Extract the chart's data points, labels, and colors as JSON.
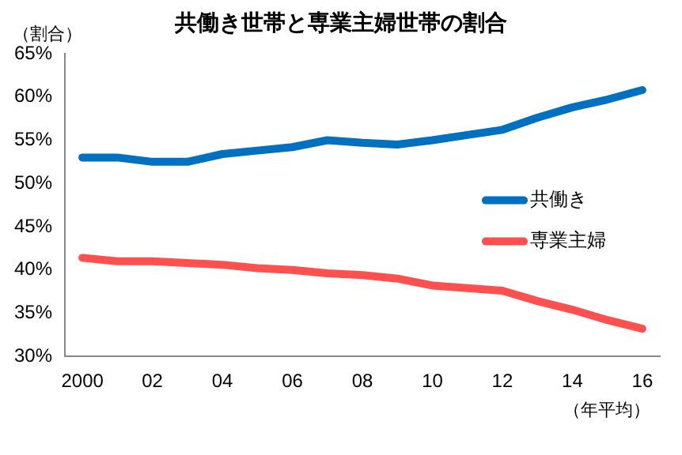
{
  "chart_data": {
    "type": "line",
    "title": "共働き世帯と専業主婦世帯の割合",
    "ylabel": "（割合）",
    "xlabel": "（年平均）",
    "categories": [
      "2000",
      null,
      "02",
      null,
      "04",
      null,
      "06",
      null,
      "08",
      null,
      "10",
      null,
      "12",
      null,
      "14",
      null,
      "16"
    ],
    "series": [
      {
        "name": "共働き",
        "color": "#0070c0",
        "values": [
          53,
          53,
          52.5,
          52.5,
          53.4,
          53.8,
          54.2,
          55,
          54.7,
          54.5,
          55,
          55.6,
          56.2,
          57.6,
          58.8,
          59.7,
          60.8
        ]
      },
      {
        "name": "専業主婦",
        "color": "#ff5050",
        "values": [
          41.4,
          41,
          41,
          40.8,
          40.6,
          40.2,
          40,
          39.6,
          39.4,
          39,
          38.2,
          37.9,
          37.6,
          36.4,
          35.4,
          34.2,
          33.2
        ]
      }
    ],
    "ylim": [
      30,
      65
    ],
    "yticks": [
      {
        "value": 30,
        "label": "30%"
      },
      {
        "value": 35,
        "label": "35%"
      },
      {
        "value": 40,
        "label": "40%"
      },
      {
        "value": 45,
        "label": "45%"
      },
      {
        "value": 50,
        "label": "50%"
      },
      {
        "value": 55,
        "label": "55%"
      },
      {
        "value": 60,
        "label": "60%"
      },
      {
        "value": 65,
        "label": "65%"
      }
    ],
    "grid": false,
    "legend": "right",
    "marker": "none",
    "line_style": "solid"
  }
}
